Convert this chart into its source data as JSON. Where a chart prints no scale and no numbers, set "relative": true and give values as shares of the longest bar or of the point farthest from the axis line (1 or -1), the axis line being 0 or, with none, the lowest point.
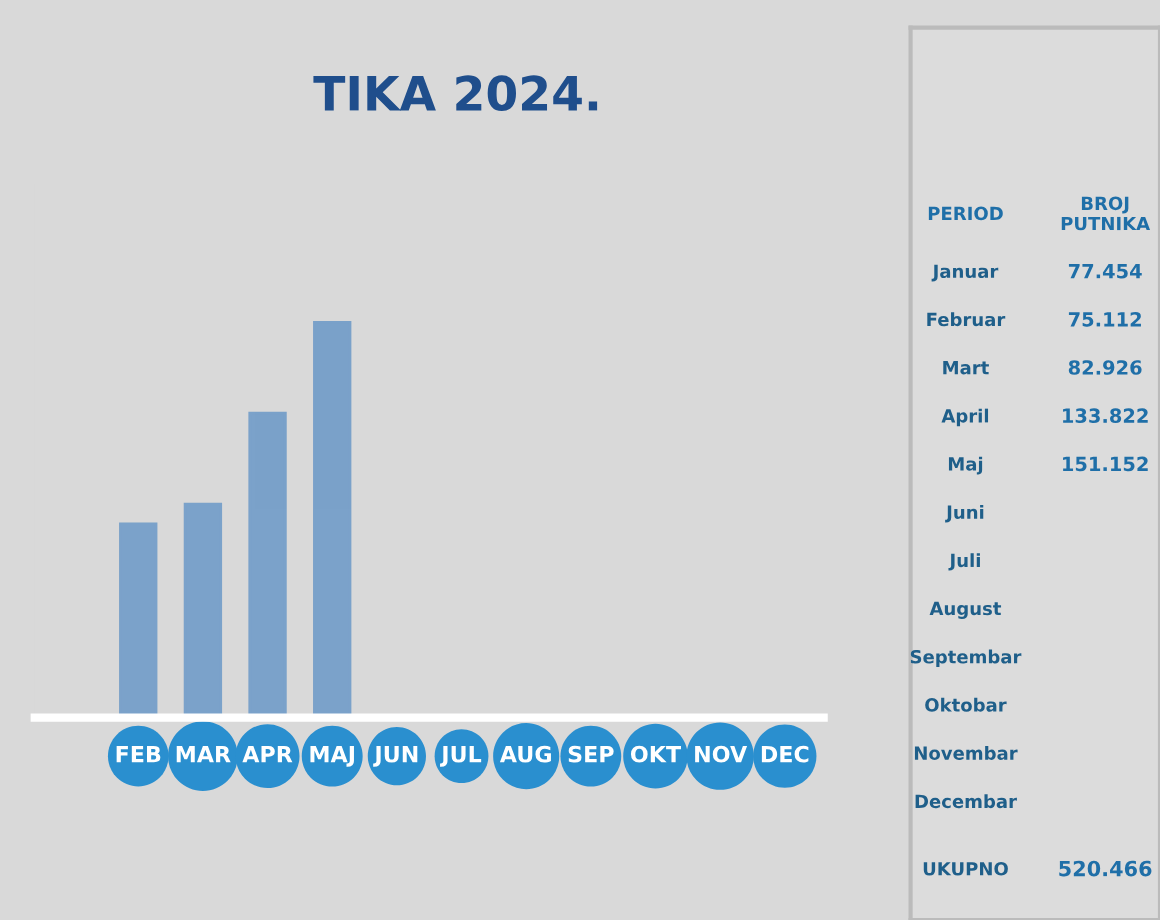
{
  "chart_data": [
    {
      "type": "bar",
      "title": "TIKA 2024.",
      "relative": true,
      "categories": [
        null,
        "FEB",
        "MAR",
        "APR",
        "MAJ",
        "JUN",
        "JUL",
        "AUG",
        "SEP",
        "OKT",
        "NOV",
        "DEC"
      ],
      "values": [
        null,
        0.49,
        0.54,
        0.77,
        1,
        null,
        null,
        null,
        null,
        null,
        null,
        null
      ],
      "color": "#5b8fc4"
    },
    {
      "type": "other",
      "annotations": [
        "PERIOD",
        "BROJ PUTNIKA",
        "Januar",
        "77.454",
        "Februar",
        "75.112",
        "Mart",
        "82.926",
        "April",
        "133.822",
        "Maj",
        "151.152",
        "Juni",
        "Juli",
        "August",
        "Septembar",
        "Oktobar",
        "Novembar",
        "Decembar",
        "UKUPNO",
        "520.466"
      ]
    }
  ]
}
